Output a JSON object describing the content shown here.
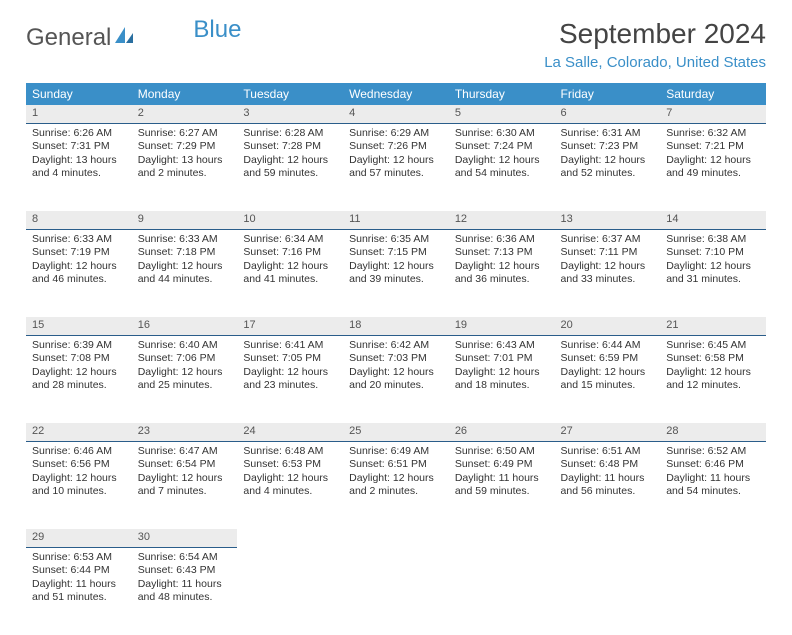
{
  "logo": {
    "text1": "General",
    "text2": "Blue"
  },
  "title": "September 2024",
  "location": "La Salle, Colorado, United States",
  "colors": {
    "headerBg": "#3a8fc8",
    "dayBg": "#ececec",
    "dayBorder": "#2a5d8a",
    "text": "#333333",
    "accent": "#3a8fc8"
  },
  "dayHeaders": [
    "Sunday",
    "Monday",
    "Tuesday",
    "Wednesday",
    "Thursday",
    "Friday",
    "Saturday"
  ],
  "weeks": [
    [
      {
        "n": "1",
        "sr": "6:26 AM",
        "ss": "7:31 PM",
        "dl": "13 hours and 4 minutes."
      },
      {
        "n": "2",
        "sr": "6:27 AM",
        "ss": "7:29 PM",
        "dl": "13 hours and 2 minutes."
      },
      {
        "n": "3",
        "sr": "6:28 AM",
        "ss": "7:28 PM",
        "dl": "12 hours and 59 minutes."
      },
      {
        "n": "4",
        "sr": "6:29 AM",
        "ss": "7:26 PM",
        "dl": "12 hours and 57 minutes."
      },
      {
        "n": "5",
        "sr": "6:30 AM",
        "ss": "7:24 PM",
        "dl": "12 hours and 54 minutes."
      },
      {
        "n": "6",
        "sr": "6:31 AM",
        "ss": "7:23 PM",
        "dl": "12 hours and 52 minutes."
      },
      {
        "n": "7",
        "sr": "6:32 AM",
        "ss": "7:21 PM",
        "dl": "12 hours and 49 minutes."
      }
    ],
    [
      {
        "n": "8",
        "sr": "6:33 AM",
        "ss": "7:19 PM",
        "dl": "12 hours and 46 minutes."
      },
      {
        "n": "9",
        "sr": "6:33 AM",
        "ss": "7:18 PM",
        "dl": "12 hours and 44 minutes."
      },
      {
        "n": "10",
        "sr": "6:34 AM",
        "ss": "7:16 PM",
        "dl": "12 hours and 41 minutes."
      },
      {
        "n": "11",
        "sr": "6:35 AM",
        "ss": "7:15 PM",
        "dl": "12 hours and 39 minutes."
      },
      {
        "n": "12",
        "sr": "6:36 AM",
        "ss": "7:13 PM",
        "dl": "12 hours and 36 minutes."
      },
      {
        "n": "13",
        "sr": "6:37 AM",
        "ss": "7:11 PM",
        "dl": "12 hours and 33 minutes."
      },
      {
        "n": "14",
        "sr": "6:38 AM",
        "ss": "7:10 PM",
        "dl": "12 hours and 31 minutes."
      }
    ],
    [
      {
        "n": "15",
        "sr": "6:39 AM",
        "ss": "7:08 PM",
        "dl": "12 hours and 28 minutes."
      },
      {
        "n": "16",
        "sr": "6:40 AM",
        "ss": "7:06 PM",
        "dl": "12 hours and 25 minutes."
      },
      {
        "n": "17",
        "sr": "6:41 AM",
        "ss": "7:05 PM",
        "dl": "12 hours and 23 minutes."
      },
      {
        "n": "18",
        "sr": "6:42 AM",
        "ss": "7:03 PM",
        "dl": "12 hours and 20 minutes."
      },
      {
        "n": "19",
        "sr": "6:43 AM",
        "ss": "7:01 PM",
        "dl": "12 hours and 18 minutes."
      },
      {
        "n": "20",
        "sr": "6:44 AM",
        "ss": "6:59 PM",
        "dl": "12 hours and 15 minutes."
      },
      {
        "n": "21",
        "sr": "6:45 AM",
        "ss": "6:58 PM",
        "dl": "12 hours and 12 minutes."
      }
    ],
    [
      {
        "n": "22",
        "sr": "6:46 AM",
        "ss": "6:56 PM",
        "dl": "12 hours and 10 minutes."
      },
      {
        "n": "23",
        "sr": "6:47 AM",
        "ss": "6:54 PM",
        "dl": "12 hours and 7 minutes."
      },
      {
        "n": "24",
        "sr": "6:48 AM",
        "ss": "6:53 PM",
        "dl": "12 hours and 4 minutes."
      },
      {
        "n": "25",
        "sr": "6:49 AM",
        "ss": "6:51 PM",
        "dl": "12 hours and 2 minutes."
      },
      {
        "n": "26",
        "sr": "6:50 AM",
        "ss": "6:49 PM",
        "dl": "11 hours and 59 minutes."
      },
      {
        "n": "27",
        "sr": "6:51 AM",
        "ss": "6:48 PM",
        "dl": "11 hours and 56 minutes."
      },
      {
        "n": "28",
        "sr": "6:52 AM",
        "ss": "6:46 PM",
        "dl": "11 hours and 54 minutes."
      }
    ],
    [
      {
        "n": "29",
        "sr": "6:53 AM",
        "ss": "6:44 PM",
        "dl": "11 hours and 51 minutes."
      },
      {
        "n": "30",
        "sr": "6:54 AM",
        "ss": "6:43 PM",
        "dl": "11 hours and 48 minutes."
      },
      null,
      null,
      null,
      null,
      null
    ]
  ],
  "labels": {
    "sunrise": "Sunrise:",
    "sunset": "Sunset:",
    "daylight": "Daylight:"
  }
}
